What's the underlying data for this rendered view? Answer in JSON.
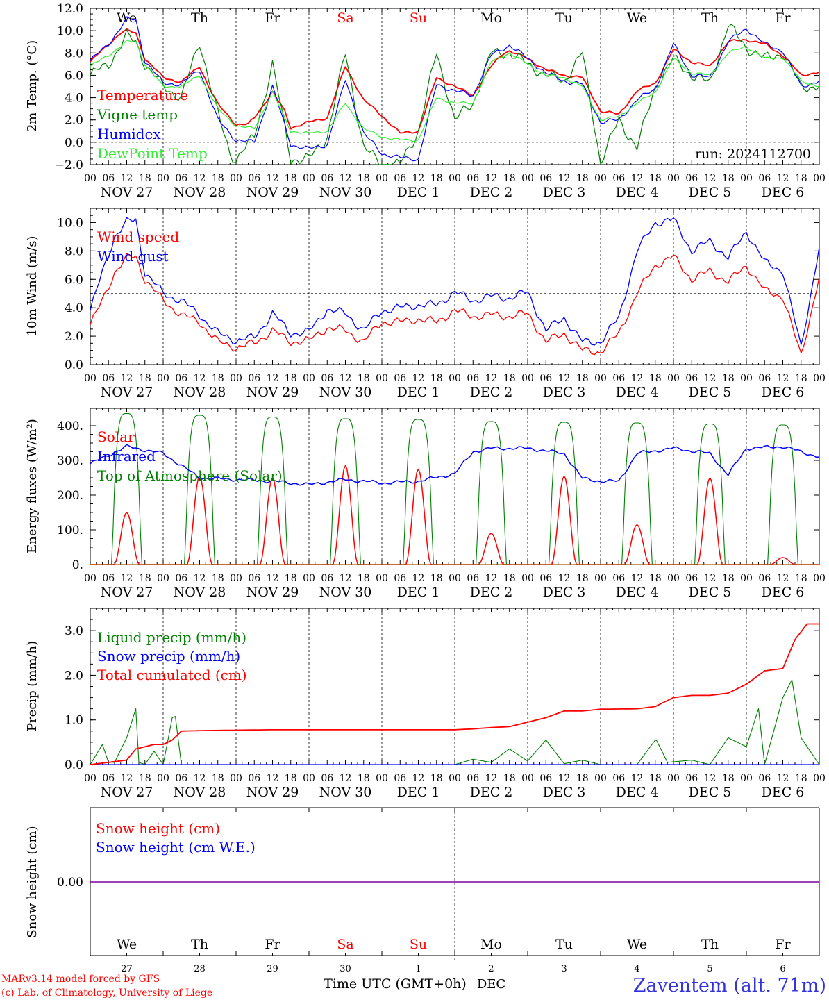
{
  "days": [
    "We",
    "Th",
    "Fr",
    "Sa",
    "Su",
    "Mo",
    "Tu",
    "We",
    "Th",
    "Fr"
  ],
  "weekend_days": [
    "Sa",
    "Su"
  ],
  "date_labels": [
    "NOV 27",
    "NOV 28",
    "NOV 29",
    "NOV 30",
    "DEC  1",
    "DEC  2",
    "DEC  3",
    "DEC  4",
    "DEC  5",
    "DEC  6"
  ],
  "hour_ticks": [
    "00",
    "06",
    "12",
    "18"
  ],
  "hour_end": "00",
  "colors": {
    "red": "#ff0000",
    "darkgreen": "#008000",
    "blue": "#0000ff",
    "lightgreen": "#33ee33",
    "purple": "#8000a0",
    "axis": "#000000",
    "footer_blue": "#3333dd"
  },
  "panel_temp": {
    "ylabel": "2m Temp. (°C)",
    "yticks": [
      "12.0",
      "10.0",
      "8.0",
      "6.0",
      "4.0",
      "2.0",
      "0.0",
      "−2.0"
    ],
    "legend": [
      "Temperature",
      "Vigne temp",
      "Humidex",
      "DewPoint Temp"
    ],
    "run": "run: 2024112700"
  },
  "panel_wind": {
    "ylabel": "10m Wind (m/s)",
    "yticks": [
      "10.0",
      "8.0",
      "6.0",
      "4.0",
      "2.0",
      "0.0"
    ],
    "legend": [
      "Wind speed",
      "Wind gust"
    ]
  },
  "panel_energy": {
    "ylabel": "Energy fluxes (W/m²)",
    "yticks": [
      "400.",
      "300.",
      "200.",
      "100.",
      "0."
    ],
    "legend": [
      "Solar",
      "Infrared",
      "Top of Atmosphere (Solar)"
    ]
  },
  "panel_precip": {
    "ylabel": "Precip (mm/h)",
    "yticks": [
      "3.0",
      "2.0",
      "1.0",
      "0.0"
    ],
    "legend": [
      "Liquid precip (mm/h)",
      "Snow precip (mm/h)",
      "Total cumulated (cm)"
    ]
  },
  "panel_snow": {
    "ylabel": "Snow height (cm)",
    "ytick": "0.00",
    "legend": [
      "Snow height (cm)",
      "Snow height (cm W.E.)"
    ],
    "day_numbers": [
      "27",
      "28",
      "29",
      "30",
      "1",
      "2",
      "3",
      "4",
      "5",
      "6"
    ],
    "month_label": "DEC",
    "xlabel": "Time UTC (GMT+0h)"
  },
  "footer": {
    "credit1": "MARv3.14 model forced by GFS",
    "credit2": "(c) Lab. of Climatology, University of Liege",
    "station": "Zaventem (alt. 71m)"
  },
  "chart_data": [
    {
      "type": "line",
      "ylabel": "2m Temp. (°C)",
      "ylim": [
        -2,
        12
      ],
      "x_unit": "hours since 2024-11-27 00 UTC",
      "series": [
        {
          "name": "Temperature",
          "color": "#ff0000",
          "x": [
            0,
            6,
            10,
            12,
            15,
            18,
            24,
            30,
            36,
            39,
            42,
            48,
            52,
            54,
            60,
            64,
            66,
            72,
            78,
            84,
            90,
            96,
            102,
            108,
            114,
            120,
            126,
            132,
            136,
            138,
            144,
            150,
            156,
            162,
            168,
            174,
            180,
            186,
            192,
            198,
            204,
            210,
            216,
            222,
            228,
            234,
            240
          ],
          "y": [
            7.2,
            8.8,
            9.8,
            10.0,
            9.8,
            7.5,
            5.8,
            5.4,
            6.8,
            5.0,
            3.4,
            1.6,
            1.6,
            2.2,
            4.5,
            2.8,
            1.3,
            1.8,
            2.2,
            6.8,
            3.8,
            2.4,
            0.8,
            1.0,
            5.8,
            5.0,
            4.2,
            6.8,
            8.0,
            8.2,
            7.5,
            6.5,
            6.0,
            5.8,
            2.8,
            2.5,
            4.6,
            5.3,
            8.3,
            7.2,
            6.8,
            9.0,
            9.2,
            8.8,
            7.8,
            6.0,
            6.3
          ]
        },
        {
          "name": "Vigne temp",
          "color": "#008000",
          "x": [
            0,
            6,
            12,
            15,
            18,
            24,
            30,
            36,
            42,
            46,
            48,
            54,
            60,
            66,
            72,
            78,
            84,
            90,
            96,
            102,
            108,
            114,
            120,
            126,
            132,
            138,
            144,
            150,
            156,
            162,
            168,
            174,
            180,
            186,
            192,
            198,
            204,
            210,
            216,
            222,
            228,
            234,
            240
          ],
          "y": [
            6.0,
            7.0,
            9.5,
            9.0,
            7.0,
            5.0,
            4.0,
            9.0,
            2.5,
            -1.0,
            -1.5,
            0.5,
            7.0,
            -1.5,
            -1.5,
            0.5,
            8.0,
            -0.5,
            -2.0,
            -2.0,
            1.0,
            8.0,
            2.0,
            3.5,
            8.0,
            8.0,
            7.0,
            6.0,
            5.5,
            8.0,
            -1.8,
            2.0,
            -0.5,
            5.0,
            7.5,
            6.0,
            5.3,
            10.5,
            8.5,
            7.5,
            8.0,
            5.0,
            5.0
          ]
        },
        {
          "name": "Humidex",
          "color": "#0000ff",
          "x": [
            0,
            6,
            12,
            15,
            18,
            24,
            30,
            36,
            42,
            48,
            54,
            60,
            66,
            72,
            78,
            84,
            90,
            96,
            102,
            108,
            114,
            120,
            126,
            132,
            138,
            144,
            150,
            156,
            162,
            168,
            174,
            180,
            186,
            192,
            198,
            204,
            210,
            216,
            222,
            228,
            234,
            240
          ],
          "y": [
            7.3,
            8.8,
            11.0,
            11.0,
            7.3,
            5.3,
            5.2,
            6.5,
            2.0,
            0.2,
            0.0,
            5.0,
            -0.2,
            -0.6,
            -0.2,
            5.6,
            0.8,
            -1.0,
            -1.4,
            -1.5,
            5.2,
            4.6,
            4.2,
            7.8,
            8.7,
            7.5,
            6.2,
            5.5,
            5.2,
            1.8,
            2.0,
            3.8,
            4.8,
            8.8,
            6.0,
            5.8,
            9.0,
            10.2,
            8.8,
            8.2,
            5.0,
            5.5
          ]
        },
        {
          "name": "DewPoint Temp",
          "color": "#33ee33",
          "x": [
            0,
            6,
            12,
            15,
            18,
            24,
            30,
            36,
            42,
            48,
            54,
            60,
            66,
            72,
            78,
            84,
            90,
            96,
            102,
            108,
            114,
            120,
            126,
            132,
            138,
            144,
            150,
            156,
            162,
            168,
            174,
            180,
            186,
            192,
            198,
            204,
            210,
            216,
            222,
            228,
            234,
            240
          ],
          "y": [
            6.8,
            7.8,
            9.0,
            9.0,
            7.0,
            5.0,
            5.0,
            6.0,
            3.0,
            1.5,
            1.2,
            4.5,
            1.0,
            0.8,
            1.0,
            3.5,
            1.2,
            0.5,
            0.2,
            0.2,
            4.0,
            3.5,
            3.5,
            7.2,
            8.0,
            7.0,
            6.0,
            5.8,
            5.0,
            2.0,
            2.3,
            3.5,
            4.5,
            7.5,
            6.2,
            6.0,
            8.0,
            8.6,
            7.5,
            7.6,
            5.5,
            5.0
          ]
        }
      ]
    },
    {
      "type": "line",
      "ylabel": "10m Wind (m/s)",
      "ylim": [
        0,
        11
      ],
      "series": [
        {
          "name": "Wind speed",
          "color": "#ff0000",
          "x": [
            0,
            4,
            8,
            12,
            15,
            18,
            24,
            30,
            36,
            42,
            48,
            54,
            60,
            66,
            72,
            78,
            84,
            90,
            96,
            102,
            108,
            114,
            120,
            126,
            132,
            138,
            144,
            150,
            156,
            162,
            168,
            174,
            180,
            186,
            192,
            198,
            204,
            210,
            216,
            222,
            228,
            234,
            240
          ],
          "y": [
            2.8,
            4.5,
            6.5,
            7.5,
            7.6,
            6.0,
            4.5,
            3.5,
            3.0,
            1.6,
            1.2,
            1.5,
            2.4,
            1.6,
            1.7,
            2.6,
            2.4,
            1.6,
            3.0,
            3.0,
            3.2,
            3.0,
            3.8,
            3.4,
            3.5,
            3.4,
            3.6,
            1.6,
            2.2,
            1.0,
            0.9,
            2.2,
            5.0,
            7.0,
            7.6,
            6.0,
            6.6,
            5.8,
            7.0,
            5.2,
            4.8,
            0.6,
            6.2
          ]
        },
        {
          "name": "Wind gust",
          "color": "#0000ff",
          "x": [
            0,
            4,
            8,
            12,
            15,
            18,
            24,
            30,
            36,
            42,
            48,
            54,
            60,
            66,
            72,
            78,
            84,
            90,
            96,
            102,
            108,
            114,
            120,
            126,
            132,
            138,
            144,
            150,
            156,
            162,
            168,
            174,
            180,
            186,
            192,
            198,
            204,
            210,
            216,
            222,
            228,
            234,
            240
          ],
          "y": [
            3.8,
            6.5,
            9.0,
            10.0,
            10.2,
            6.5,
            5.0,
            4.5,
            3.5,
            2.2,
            1.7,
            1.9,
            3.6,
            2.2,
            2.3,
            3.9,
            3.6,
            2.4,
            3.8,
            4.0,
            4.2,
            4.2,
            5.1,
            4.5,
            4.8,
            4.7,
            5.1,
            2.4,
            3.3,
            1.6,
            1.6,
            3.3,
            8.0,
            10.0,
            10.2,
            8.0,
            8.7,
            7.5,
            9.4,
            7.2,
            6.6,
            1.2,
            8.3
          ]
        }
      ]
    },
    {
      "type": "line",
      "ylabel": "Energy fluxes (W/m²)",
      "ylim": [
        0,
        450
      ],
      "series": [
        {
          "name": "Solar",
          "color": "#ff0000",
          "peak_hours": [
            12,
            36,
            60,
            84,
            108,
            132,
            156,
            180,
            204,
            228
          ],
          "peaks": [
            150,
            255,
            250,
            285,
            275,
            90,
            255,
            115,
            250,
            20
          ]
        },
        {
          "name": "Infrared",
          "color": "#0000ff",
          "x": [
            0,
            12,
            24,
            36,
            48,
            60,
            72,
            84,
            96,
            108,
            120,
            126,
            132,
            144,
            156,
            162,
            168,
            174,
            180,
            192,
            204,
            210,
            216,
            228,
            240
          ],
          "y": [
            290,
            340,
            320,
            250,
            245,
            240,
            230,
            245,
            235,
            240,
            262,
            325,
            335,
            335,
            320,
            248,
            240,
            240,
            320,
            335,
            320,
            258,
            335,
            340,
            310
          ]
        },
        {
          "name": "Top of Atmosphere (Solar)",
          "color": "#008000",
          "peak_hours": [
            12,
            36,
            60,
            84,
            108,
            132,
            156,
            180,
            204,
            228
          ],
          "peaks": [
            435,
            430,
            425,
            420,
            418,
            412,
            410,
            408,
            405,
            402
          ]
        }
      ]
    },
    {
      "type": "line",
      "ylabel": "Precip (mm/h)",
      "ylim": [
        0,
        3.5
      ],
      "series": [
        {
          "name": "Liquid precip (mm/h)",
          "color": "#008000",
          "x": [
            0,
            4,
            6,
            8,
            12,
            15,
            16,
            18,
            21,
            24,
            27,
            28,
            30,
            36,
            48,
            120,
            126,
            132,
            138,
            144,
            150,
            156,
            162,
            168,
            174,
            180,
            186,
            186,
            190,
            198,
            204,
            210,
            216,
            220,
            222,
            228,
            231,
            234,
            240
          ],
          "y": [
            0,
            0.45,
            0.05,
            0.05,
            0.6,
            1.25,
            0.05,
            0,
            0.3,
            0,
            1.05,
            1.08,
            0,
            0,
            0,
            0,
            0.12,
            0.05,
            0.35,
            0.08,
            0.55,
            0.02,
            0.1,
            0,
            0,
            0,
            0.55,
            0.6,
            0.05,
            0.1,
            0,
            0.6,
            0.4,
            1.25,
            0,
            1.5,
            1.9,
            0.6,
            0
          ]
        },
        {
          "name": "Snow precip (mm/h)",
          "color": "#0000ff",
          "x": [
            0,
            240
          ],
          "y": [
            0,
            0
          ]
        },
        {
          "name": "Total cumulated (cm)",
          "color": "#ff0000",
          "x": [
            0,
            6,
            12,
            15,
            18,
            21,
            24,
            27,
            30,
            36,
            48,
            60,
            72,
            96,
            120,
            126,
            132,
            138,
            144,
            150,
            156,
            162,
            168,
            180,
            186,
            192,
            198,
            204,
            210,
            216,
            222,
            228,
            232,
            236,
            240
          ],
          "y": [
            0,
            0.05,
            0.1,
            0.35,
            0.4,
            0.45,
            0.45,
            0.55,
            0.75,
            0.76,
            0.77,
            0.78,
            0.78,
            0.78,
            0.78,
            0.8,
            0.83,
            0.85,
            0.95,
            1.05,
            1.2,
            1.2,
            1.24,
            1.25,
            1.3,
            1.5,
            1.55,
            1.55,
            1.6,
            1.8,
            2.1,
            2.15,
            2.8,
            3.15,
            3.15
          ]
        }
      ]
    },
    {
      "type": "line",
      "ylabel": "Snow height (cm)",
      "series": [
        {
          "name": "Snow height (cm)",
          "color": "#ff0000",
          "x": [
            0,
            240
          ],
          "y": [
            0,
            0
          ]
        },
        {
          "name": "Snow height (cm W.E.)",
          "color": "#0000ff",
          "x": [
            0,
            240
          ],
          "y": [
            0,
            0
          ]
        }
      ]
    }
  ]
}
